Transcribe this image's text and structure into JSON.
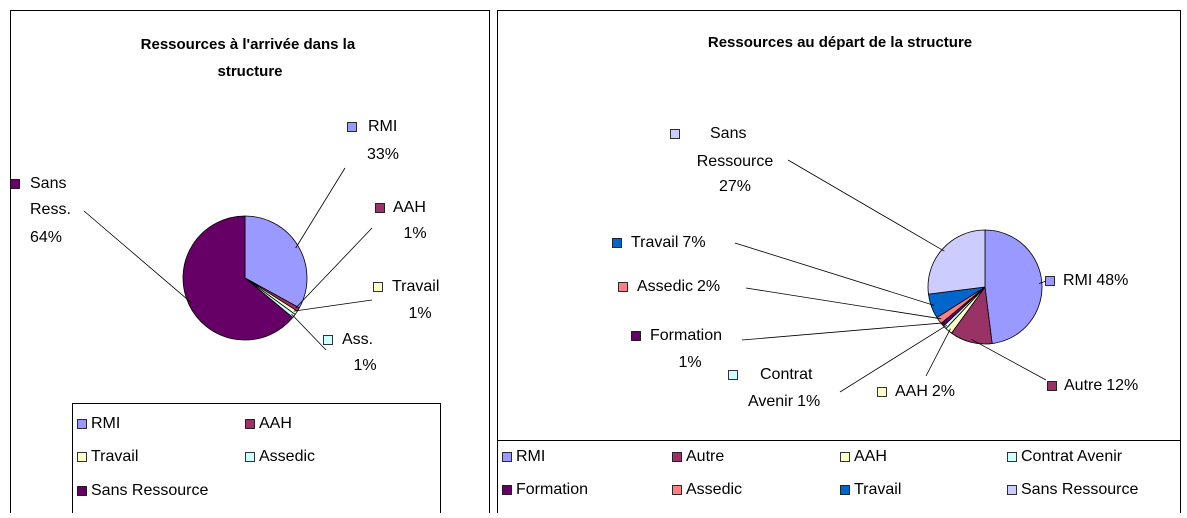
{
  "chart_data": [
    {
      "type": "pie",
      "title": "Ressources à l'arrivée dans la structure",
      "categories": [
        "RMI",
        "AAH",
        "Travail",
        "Assedic",
        "Sans Ressource"
      ],
      "labels": [
        "RMI",
        "AAH",
        "Travail",
        "Ass.",
        "Sans Ress."
      ],
      "values": [
        33,
        1,
        1,
        1,
        64
      ],
      "value_labels": [
        "33%",
        "1%",
        "1%",
        "1%",
        "64%"
      ],
      "colors": [
        "#9999ff",
        "#993366",
        "#ffffcc",
        "#ccffff",
        "#660066"
      ]
    },
    {
      "type": "pie",
      "title": "Ressources au départ de la structure",
      "categories": [
        "RMI",
        "Autre",
        "AAH",
        "Contrat Avenir",
        "Formation",
        "Assedic",
        "Travail",
        "Sans Ressource"
      ],
      "values": [
        48,
        12,
        2,
        1,
        1,
        2,
        7,
        27
      ],
      "value_labels": [
        "48%",
        "12%",
        "2%",
        "1%",
        "1%",
        "2%",
        "7%",
        "27%"
      ],
      "colors": [
        "#9999ff",
        "#993366",
        "#ffffcc",
        "#ccffff",
        "#660066",
        "#ff8080",
        "#0066cc",
        "#ccccff"
      ]
    }
  ]
}
